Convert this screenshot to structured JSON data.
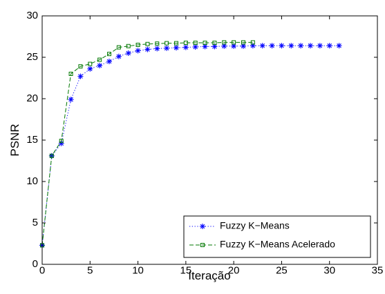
{
  "chart_data": {
    "type": "line",
    "title": "",
    "xlabel": "Iteração",
    "ylabel": "PSNR",
    "xlim": [
      0,
      35
    ],
    "ylim": [
      0,
      30
    ],
    "xticks": [
      0,
      5,
      10,
      15,
      20,
      25,
      30,
      35
    ],
    "yticks": [
      0,
      5,
      10,
      15,
      20,
      25,
      30
    ],
    "grid": false,
    "legend_position": "bottom-right",
    "series": [
      {
        "name": "Fuzzy K−Means",
        "color": "#0000ff",
        "line_style": "dotted",
        "marker": "asterisk",
        "x": [
          0,
          1,
          2,
          3,
          4,
          5,
          6,
          7,
          8,
          9,
          10,
          11,
          12,
          13,
          14,
          15,
          16,
          17,
          18,
          19,
          20,
          21,
          22,
          23,
          24,
          25,
          26,
          27,
          28,
          29,
          30,
          31
        ],
        "y": [
          2.3,
          13.1,
          14.6,
          19.9,
          22.7,
          23.6,
          24.0,
          24.5,
          25.1,
          25.5,
          25.8,
          25.95,
          26.05,
          26.1,
          26.15,
          26.2,
          26.25,
          26.3,
          26.3,
          26.35,
          26.35,
          26.35,
          26.4,
          26.4,
          26.4,
          26.4,
          26.4,
          26.4,
          26.4,
          26.4,
          26.4,
          26.4
        ]
      },
      {
        "name": "Fuzzy K−Means Acelerado",
        "color": "#007700",
        "line_style": "dashed",
        "marker": "square",
        "x": [
          0,
          1,
          2,
          3,
          4,
          5,
          6,
          7,
          8,
          9,
          10,
          11,
          12,
          13,
          14,
          15,
          16,
          17,
          18,
          19,
          20,
          21,
          22
        ],
        "y": [
          2.3,
          13.1,
          14.9,
          23.0,
          23.9,
          24.2,
          24.7,
          25.4,
          26.2,
          26.35,
          26.5,
          26.6,
          26.65,
          26.7,
          26.7,
          26.75,
          26.75,
          26.75,
          26.75,
          26.8,
          26.8,
          26.8,
          26.8
        ]
      }
    ]
  }
}
